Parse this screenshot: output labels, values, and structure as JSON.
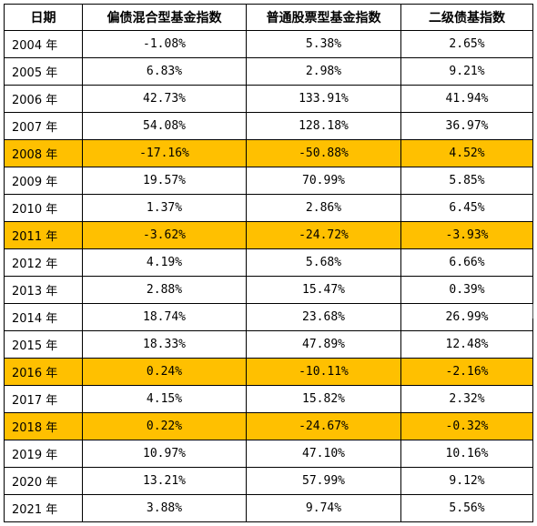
{
  "table": {
    "headers": [
      "日期",
      "偏债混合型基金指数",
      "普通股票型基金指数",
      "二级债基指数"
    ],
    "rows": [
      {
        "year": "2004 年",
        "mixed": "-1.08%",
        "stock": "5.38%",
        "bond": "2.65%",
        "highlight": false
      },
      {
        "year": "2005 年",
        "mixed": "6.83%",
        "stock": "2.98%",
        "bond": "9.21%",
        "highlight": false
      },
      {
        "year": "2006 年",
        "mixed": "42.73%",
        "stock": "133.91%",
        "bond": "41.94%",
        "highlight": false
      },
      {
        "year": "2007 年",
        "mixed": "54.08%",
        "stock": "128.18%",
        "bond": "36.97%",
        "highlight": false
      },
      {
        "year": "2008 年",
        "mixed": "-17.16%",
        "stock": "-50.88%",
        "bond": "4.52%",
        "highlight": true
      },
      {
        "year": "2009 年",
        "mixed": "19.57%",
        "stock": "70.99%",
        "bond": "5.85%",
        "highlight": false
      },
      {
        "year": "2010 年",
        "mixed": "1.37%",
        "stock": "2.86%",
        "bond": "6.45%",
        "highlight": false
      },
      {
        "year": "2011 年",
        "mixed": "-3.62%",
        "stock": "-24.72%",
        "bond": "-3.93%",
        "highlight": true
      },
      {
        "year": "2012 年",
        "mixed": "4.19%",
        "stock": "5.68%",
        "bond": "6.66%",
        "highlight": false
      },
      {
        "year": "2013 年",
        "mixed": "2.88%",
        "stock": "15.47%",
        "bond": "0.39%",
        "highlight": false
      },
      {
        "year": "2014 年",
        "mixed": "18.74%",
        "stock": "23.68%",
        "bond": "26.99%",
        "highlight": false
      },
      {
        "year": "2015 年",
        "mixed": "18.33%",
        "stock": "47.89%",
        "bond": "12.48%",
        "highlight": false
      },
      {
        "year": "2016 年",
        "mixed": "0.24%",
        "stock": "-10.11%",
        "bond": "-2.16%",
        "highlight": true
      },
      {
        "year": "2017 年",
        "mixed": "4.15%",
        "stock": "15.82%",
        "bond": "2.32%",
        "highlight": false
      },
      {
        "year": "2018 年",
        "mixed": "0.22%",
        "stock": "-24.67%",
        "bond": "-0.32%",
        "highlight": true
      },
      {
        "year": "2019 年",
        "mixed": "10.97%",
        "stock": "47.10%",
        "bond": "10.16%",
        "highlight": false
      },
      {
        "year": "2020 年",
        "mixed": "13.21%",
        "stock": "57.99%",
        "bond": "9.12%",
        "highlight": false
      },
      {
        "year": "2021 年",
        "mixed": "3.88%",
        "stock": "9.74%",
        "bond": "5.56%",
        "highlight": false
      }
    ]
  },
  "colors": {
    "highlight": "#ffc000",
    "border": "#000000",
    "background": "#ffffff"
  }
}
